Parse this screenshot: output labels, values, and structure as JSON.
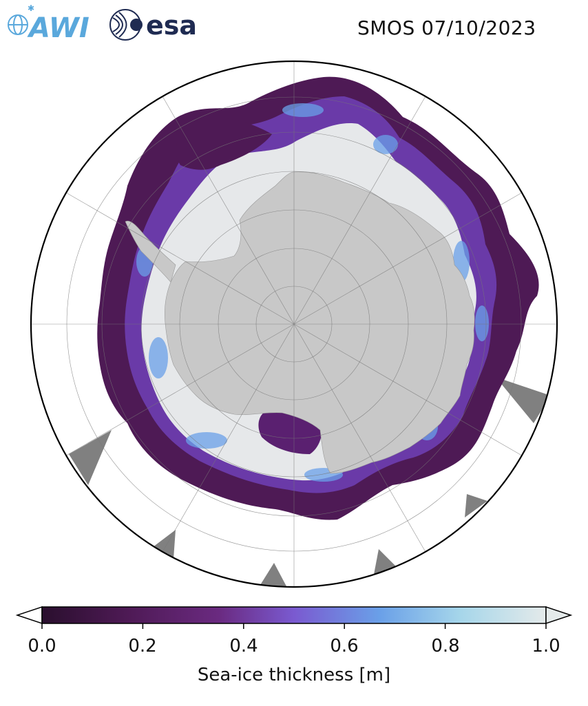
{
  "header": {
    "awi_logo_text": "AWI",
    "esa_logo_text": "esa",
    "title": "SMOS 07/10/2023"
  },
  "map": {
    "projection": "south-polar-stereographic",
    "variable": "sea-ice thickness",
    "land_color": "#c8c8c8",
    "no_data_color": "#808080",
    "ocean_color": "#ffffff"
  },
  "colorbar": {
    "label": "Sea-ice thickness [m]",
    "ticks": [
      "0.0",
      "0.2",
      "0.4",
      "0.6",
      "0.8",
      "1.0"
    ],
    "tick_values": [
      0.0,
      0.2,
      0.4,
      0.6,
      0.8,
      1.0
    ],
    "range": [
      0.0,
      1.0
    ],
    "extend": "both",
    "colors": [
      "#2a0f2e",
      "#4e1a55",
      "#6a2a80",
      "#7a5ad0",
      "#6aa0e8",
      "#a6d6ea",
      "#e4eaea"
    ]
  }
}
